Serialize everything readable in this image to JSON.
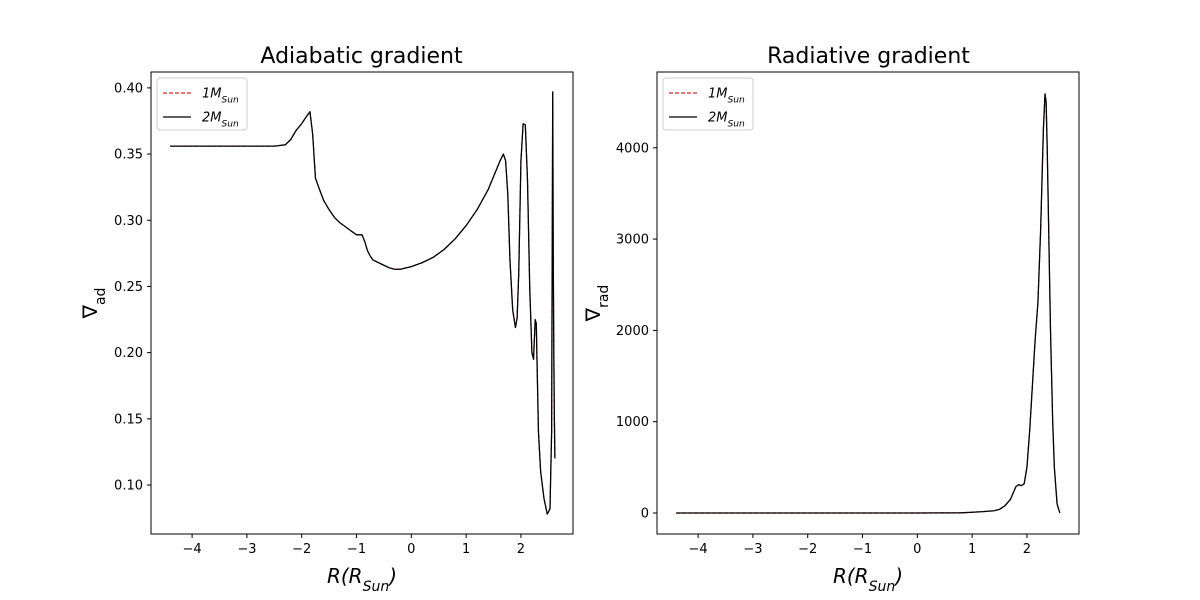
{
  "chart_data": [
    {
      "type": "line",
      "title": "Adiabatic gradient",
      "xlabel": {
        "base": "R(R",
        "sub": "Sun",
        "close": ")"
      },
      "ylabel": {
        "base": "∇",
        "sub": "ad"
      },
      "xlim": [
        -4.75,
        2.95
      ],
      "ylim": [
        0.063,
        0.412
      ],
      "xticks": [
        -4,
        -3,
        -2,
        -1,
        0,
        1,
        2
      ],
      "xtick_labels": [
        "−4",
        "−3",
        "−2",
        "−1",
        "0",
        "1",
        "2"
      ],
      "yticks": [
        0.1,
        0.15,
        0.2,
        0.25,
        0.3,
        0.35,
        0.4
      ],
      "ytick_labels": [
        "0.10",
        "0.15",
        "0.20",
        "0.25",
        "0.30",
        "0.35",
        "0.40"
      ],
      "grid": false,
      "legend_position": "top-left",
      "series": [
        {
          "name": {
            "base": "1M",
            "sub": "Sun"
          },
          "color": "#d62728",
          "linestyle": "dashed",
          "x": [
            -4.4,
            -3.5,
            -2.5,
            -2.3,
            -2.2,
            -2.1,
            -2.0,
            -1.92,
            -1.85,
            -1.8,
            -1.75,
            -1.7,
            -1.6,
            -1.5,
            -1.4,
            -1.3,
            -1.2,
            -1.1,
            -1.0,
            -0.9,
            -0.85,
            -0.8,
            -0.75,
            -0.7,
            -0.6,
            -0.5,
            -0.4,
            -0.3,
            -0.2,
            0.0,
            0.2,
            0.4,
            0.6,
            0.8,
            1.0,
            1.2,
            1.4,
            1.55,
            1.62,
            1.68,
            1.72,
            1.76,
            1.8,
            1.85,
            1.9,
            1.93,
            1.96,
            2.0,
            2.04,
            2.08,
            2.12,
            2.16,
            2.2,
            2.23,
            2.26,
            2.28,
            2.3,
            2.32,
            2.36,
            2.42,
            2.48,
            2.53,
            2.56,
            2.58,
            2.59,
            2.6,
            2.61,
            2.62
          ],
          "values": [
            0.356,
            0.356,
            0.356,
            0.357,
            0.361,
            0.368,
            0.373,
            0.378,
            0.382,
            0.365,
            0.332,
            0.326,
            0.315,
            0.308,
            0.302,
            0.298,
            0.295,
            0.292,
            0.289,
            0.289,
            0.284,
            0.277,
            0.273,
            0.27,
            0.268,
            0.266,
            0.264,
            0.263,
            0.263,
            0.265,
            0.268,
            0.272,
            0.278,
            0.286,
            0.296,
            0.308,
            0.323,
            0.338,
            0.345,
            0.35,
            0.345,
            0.32,
            0.27,
            0.232,
            0.219,
            0.226,
            0.26,
            0.345,
            0.373,
            0.372,
            0.33,
            0.25,
            0.2,
            0.195,
            0.225,
            0.222,
            0.18,
            0.14,
            0.11,
            0.09,
            0.078,
            0.082,
            0.14,
            0.397,
            0.27,
            0.2,
            0.15,
            0.12
          ]
        },
        {
          "name": {
            "base": "2M",
            "sub": "Sun"
          },
          "color": "#000000",
          "linestyle": "solid",
          "x": [
            -4.4,
            -3.5,
            -2.5,
            -2.3,
            -2.2,
            -2.1,
            -2.0,
            -1.92,
            -1.85,
            -1.8,
            -1.75,
            -1.7,
            -1.6,
            -1.5,
            -1.4,
            -1.3,
            -1.2,
            -1.1,
            -1.0,
            -0.9,
            -0.85,
            -0.8,
            -0.75,
            -0.7,
            -0.6,
            -0.5,
            -0.4,
            -0.3,
            -0.2,
            0.0,
            0.2,
            0.4,
            0.6,
            0.8,
            1.0,
            1.2,
            1.4,
            1.55,
            1.62,
            1.68,
            1.72,
            1.76,
            1.8,
            1.85,
            1.9,
            1.93,
            1.96,
            2.0,
            2.04,
            2.08,
            2.12,
            2.16,
            2.2,
            2.23,
            2.26,
            2.28,
            2.3,
            2.32,
            2.36,
            2.42,
            2.48,
            2.53,
            2.56,
            2.58,
            2.59,
            2.6,
            2.61,
            2.62
          ],
          "values": [
            0.356,
            0.356,
            0.356,
            0.357,
            0.361,
            0.368,
            0.373,
            0.378,
            0.382,
            0.365,
            0.332,
            0.326,
            0.315,
            0.308,
            0.302,
            0.298,
            0.295,
            0.292,
            0.289,
            0.289,
            0.284,
            0.277,
            0.273,
            0.27,
            0.268,
            0.266,
            0.264,
            0.263,
            0.263,
            0.265,
            0.268,
            0.272,
            0.278,
            0.286,
            0.296,
            0.308,
            0.323,
            0.338,
            0.345,
            0.35,
            0.345,
            0.32,
            0.27,
            0.232,
            0.219,
            0.226,
            0.26,
            0.345,
            0.373,
            0.372,
            0.33,
            0.25,
            0.2,
            0.195,
            0.225,
            0.222,
            0.18,
            0.14,
            0.11,
            0.09,
            0.078,
            0.082,
            0.14,
            0.397,
            0.27,
            0.2,
            0.15,
            0.12
          ]
        }
      ]
    },
    {
      "type": "line",
      "title": "Radiative gradient",
      "xlabel": {
        "base": "R(R",
        "sub": "Sun",
        "close": ")"
      },
      "ylabel": {
        "base": "∇",
        "sub": "rad"
      },
      "xlim": [
        -4.75,
        2.95
      ],
      "ylim": [
        -230,
        4830
      ],
      "xticks": [
        -4,
        -3,
        -2,
        -1,
        0,
        1,
        2
      ],
      "xtick_labels": [
        "−4",
        "−3",
        "−2",
        "−1",
        "0",
        "1",
        "2"
      ],
      "yticks": [
        0,
        1000,
        2000,
        3000,
        4000
      ],
      "ytick_labels": [
        "0",
        "1000",
        "2000",
        "3000",
        "4000"
      ],
      "grid": false,
      "legend_position": "top-left",
      "series": [
        {
          "name": {
            "base": "1M",
            "sub": "Sun"
          },
          "color": "#d62728",
          "linestyle": "dashed",
          "x": [
            -4.4,
            -3.0,
            -2.0,
            -1.0,
            0.0,
            0.8,
            1.0,
            1.2,
            1.4,
            1.5,
            1.6,
            1.7,
            1.75,
            1.8,
            1.85,
            1.9,
            1.95,
            2.0,
            2.05,
            2.1,
            2.15,
            2.2,
            2.25,
            2.3,
            2.33,
            2.35,
            2.37,
            2.4,
            2.43,
            2.47,
            2.5,
            2.55,
            2.6
          ],
          "values": [
            0,
            0,
            0,
            0,
            0,
            2,
            8,
            15,
            25,
            40,
            80,
            150,
            220,
            290,
            310,
            300,
            320,
            500,
            900,
            1400,
            1900,
            2300,
            3100,
            4200,
            4590,
            4500,
            4000,
            3000,
            2000,
            1000,
            500,
            100,
            0
          ]
        },
        {
          "name": {
            "base": "2M",
            "sub": "Sun"
          },
          "color": "#000000",
          "linestyle": "solid",
          "x": [
            -4.4,
            -3.0,
            -2.0,
            -1.0,
            0.0,
            0.8,
            1.0,
            1.2,
            1.4,
            1.5,
            1.6,
            1.7,
            1.75,
            1.8,
            1.85,
            1.9,
            1.95,
            2.0,
            2.05,
            2.1,
            2.15,
            2.2,
            2.25,
            2.3,
            2.33,
            2.35,
            2.37,
            2.4,
            2.43,
            2.47,
            2.5,
            2.55,
            2.6
          ],
          "values": [
            0,
            0,
            0,
            0,
            0,
            2,
            8,
            15,
            25,
            40,
            80,
            150,
            220,
            290,
            310,
            300,
            320,
            500,
            900,
            1400,
            1900,
            2300,
            3100,
            4200,
            4590,
            4500,
            4000,
            3000,
            2000,
            1000,
            500,
            100,
            0
          ]
        }
      ]
    }
  ]
}
